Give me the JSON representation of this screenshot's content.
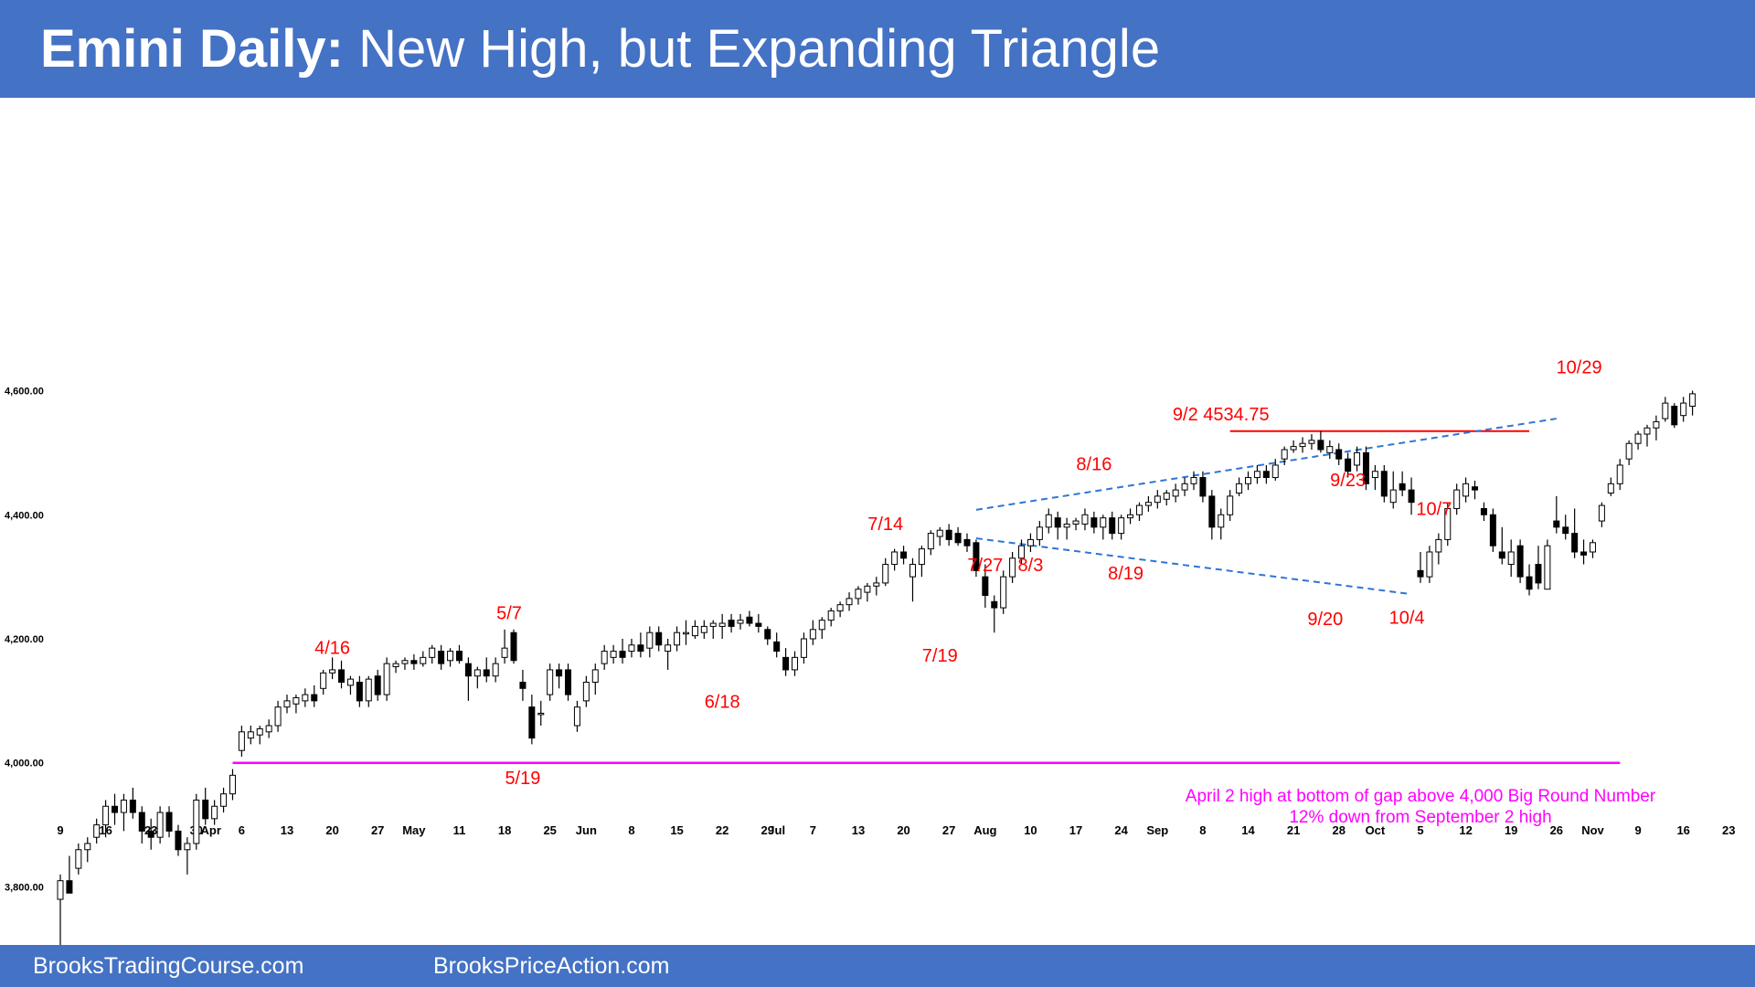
{
  "title": {
    "bold": "Emini Daily:",
    "rest": "New High, but Expanding Triangle"
  },
  "footer": {
    "left": "BrooksTradingCourse.com",
    "right": "BrooksPriceAction.com"
  },
  "colors": {
    "header": "#4472C4",
    "annotation": "#FF0000",
    "support": "#FF00FF",
    "trendline": "#2E75D6",
    "bull_body": "#ffffff",
    "bear_body": "#000000"
  },
  "chart_data": {
    "type": "candlestick",
    "title": "",
    "ylim": [
      3700,
      4620
    ],
    "y_ticks": [
      "3,800.00",
      "4,000.00",
      "4,200.00",
      "4,400.00",
      "4,600.00"
    ],
    "y_tick_values": [
      3800,
      4000,
      4200,
      4400,
      4600
    ],
    "x_ticks": [
      "9",
      "16",
      "23",
      "30",
      "Apr",
      "6",
      "13",
      "20",
      "27",
      "May",
      "11",
      "18",
      "25",
      "Jun",
      "8",
      "15",
      "22",
      "29",
      "Jul",
      "7",
      "13",
      "20",
      "27",
      "Aug",
      "10",
      "17",
      "24",
      "Sep",
      "8",
      "14",
      "21",
      "28",
      "Oct",
      "5",
      "12",
      "19",
      "26",
      "Nov",
      "9",
      "16",
      "23"
    ],
    "x_tick_positions": [
      0,
      5,
      10,
      15,
      16,
      20,
      25,
      30,
      35,
      39,
      44,
      49,
      54,
      58,
      63,
      68,
      73,
      78,
      79,
      83,
      88,
      93,
      98,
      102,
      107,
      112,
      117,
      121,
      126,
      131,
      136,
      141,
      145,
      150,
      155,
      160,
      165,
      169,
      174,
      179,
      184
    ],
    "ohlc": [
      [
        3780,
        3820,
        3700,
        3810
      ],
      [
        3810,
        3850,
        3790,
        3790
      ],
      [
        3830,
        3870,
        3820,
        3860
      ],
      [
        3860,
        3880,
        3840,
        3870
      ],
      [
        3880,
        3910,
        3870,
        3900
      ],
      [
        3900,
        3940,
        3880,
        3930
      ],
      [
        3930,
        3950,
        3900,
        3920
      ],
      [
        3920,
        3950,
        3890,
        3940
      ],
      [
        3940,
        3960,
        3910,
        3920
      ],
      [
        3920,
        3930,
        3870,
        3890
      ],
      [
        3890,
        3910,
        3860,
        3880
      ],
      [
        3880,
        3930,
        3870,
        3920
      ],
      [
        3920,
        3930,
        3880,
        3890
      ],
      [
        3890,
        3900,
        3850,
        3860
      ],
      [
        3860,
        3880,
        3820,
        3870
      ],
      [
        3870,
        3950,
        3860,
        3940
      ],
      [
        3940,
        3960,
        3900,
        3910
      ],
      [
        3910,
        3940,
        3900,
        3930
      ],
      [
        3930,
        3960,
        3920,
        3950
      ],
      [
        3950,
        3990,
        3940,
        3980
      ],
      [
        4020,
        4060,
        4010,
        4050
      ],
      [
        4040,
        4060,
        4030,
        4050
      ],
      [
        4045,
        4060,
        4030,
        4055
      ],
      [
        4050,
        4070,
        4040,
        4060
      ],
      [
        4060,
        4100,
        4050,
        4090
      ],
      [
        4090,
        4110,
        4080,
        4100
      ],
      [
        4095,
        4110,
        4080,
        4105
      ],
      [
        4100,
        4120,
        4090,
        4110
      ],
      [
        4110,
        4125,
        4090,
        4100
      ],
      [
        4120,
        4150,
        4110,
        4145
      ],
      [
        4145,
        4170,
        4135,
        4150
      ],
      [
        4150,
        4165,
        4120,
        4130
      ],
      [
        4125,
        4140,
        4110,
        4135
      ],
      [
        4130,
        4140,
        4090,
        4100
      ],
      [
        4100,
        4140,
        4090,
        4135
      ],
      [
        4140,
        4150,
        4100,
        4110
      ],
      [
        4110,
        4170,
        4100,
        4160
      ],
      [
        4155,
        4165,
        4145,
        4160
      ],
      [
        4160,
        4170,
        4150,
        4165
      ],
      [
        4165,
        4175,
        4150,
        4160
      ],
      [
        4160,
        4180,
        4155,
        4170
      ],
      [
        4170,
        4190,
        4160,
        4185
      ],
      [
        4180,
        4190,
        4150,
        4160
      ],
      [
        4165,
        4185,
        4155,
        4180
      ],
      [
        4180,
        4190,
        4160,
        4165
      ],
      [
        4160,
        4170,
        4100,
        4140
      ],
      [
        4140,
        4155,
        4120,
        4150
      ],
      [
        4150,
        4170,
        4130,
        4140
      ],
      [
        4140,
        4170,
        4130,
        4160
      ],
      [
        4170,
        4215,
        4160,
        4185
      ],
      [
        4210,
        4215,
        4160,
        4165
      ],
      [
        4130,
        4150,
        4100,
        4120
      ],
      [
        4090,
        4110,
        4030,
        4040
      ],
      [
        4080,
        4100,
        4060,
        4080
      ],
      [
        4110,
        4160,
        4100,
        4150
      ],
      [
        4150,
        4160,
        4120,
        4140
      ],
      [
        4150,
        4160,
        4100,
        4110
      ],
      [
        4060,
        4100,
        4050,
        4090
      ],
      [
        4100,
        4140,
        4090,
        4130
      ],
      [
        4130,
        4160,
        4110,
        4150
      ],
      [
        4160,
        4190,
        4150,
        4180
      ],
      [
        4170,
        4190,
        4160,
        4180
      ],
      [
        4180,
        4200,
        4160,
        4170
      ],
      [
        4180,
        4200,
        4170,
        4190
      ],
      [
        4190,
        4210,
        4170,
        4180
      ],
      [
        4185,
        4220,
        4170,
        4210
      ],
      [
        4210,
        4220,
        4180,
        4190
      ],
      [
        4180,
        4200,
        4150,
        4190
      ],
      [
        4190,
        4220,
        4180,
        4210
      ],
      [
        4210,
        4230,
        4190,
        4210
      ],
      [
        4205,
        4230,
        4200,
        4220
      ],
      [
        4210,
        4230,
        4200,
        4220
      ],
      [
        4220,
        4230,
        4200,
        4225
      ],
      [
        4220,
        4240,
        4200,
        4225
      ],
      [
        4230,
        4240,
        4210,
        4220
      ],
      [
        4225,
        4240,
        4215,
        4230
      ],
      [
        4235,
        4245,
        4220,
        4225
      ],
      [
        4225,
        4240,
        4210,
        4220
      ],
      [
        4215,
        4220,
        4190,
        4200
      ],
      [
        4195,
        4210,
        4170,
        4180
      ],
      [
        4170,
        4185,
        4140,
        4150
      ],
      [
        4150,
        4180,
        4140,
        4170
      ],
      [
        4170,
        4210,
        4160,
        4200
      ],
      [
        4200,
        4230,
        4190,
        4215
      ],
      [
        4215,
        4235,
        4200,
        4230
      ],
      [
        4230,
        4250,
        4220,
        4245
      ],
      [
        4245,
        4260,
        4235,
        4255
      ],
      [
        4255,
        4275,
        4245,
        4265
      ],
      [
        4265,
        4285,
        4255,
        4280
      ],
      [
        4275,
        4290,
        4260,
        4285
      ],
      [
        4285,
        4300,
        4270,
        4290
      ],
      [
        4290,
        4330,
        4285,
        4320
      ],
      [
        4320,
        4345,
        4310,
        4340
      ],
      [
        4340,
        4350,
        4320,
        4330
      ],
      [
        4300,
        4330,
        4260,
        4320
      ],
      [
        4320,
        4350,
        4300,
        4345
      ],
      [
        4345,
        4375,
        4335,
        4370
      ],
      [
        4365,
        4380,
        4350,
        4375
      ],
      [
        4375,
        4385,
        4350,
        4360
      ],
      [
        4370,
        4380,
        4350,
        4355
      ],
      [
        4360,
        4370,
        4340,
        4350
      ],
      [
        4355,
        4360,
        4300,
        4310
      ],
      [
        4300,
        4320,
        4250,
        4270
      ],
      [
        4260,
        4270,
        4210,
        4250
      ],
      [
        4250,
        4310,
        4240,
        4300
      ],
      [
        4300,
        4340,
        4290,
        4330
      ],
      [
        4330,
        4360,
        4320,
        4350
      ],
      [
        4350,
        4370,
        4340,
        4360
      ],
      [
        4360,
        4390,
        4350,
        4380
      ],
      [
        4380,
        4410,
        4370,
        4400
      ],
      [
        4395,
        4405,
        4360,
        4380
      ],
      [
        4380,
        4395,
        4360,
        4385
      ],
      [
        4385,
        4395,
        4375,
        4390
      ],
      [
        4385,
        4410,
        4375,
        4400
      ],
      [
        4395,
        4405,
        4370,
        4380
      ],
      [
        4380,
        4400,
        4360,
        4395
      ],
      [
        4395,
        4405,
        4360,
        4370
      ],
      [
        4370,
        4400,
        4360,
        4395
      ],
      [
        4395,
        4410,
        4385,
        4400
      ],
      [
        4400,
        4420,
        4390,
        4415
      ],
      [
        4415,
        4430,
        4405,
        4420
      ],
      [
        4420,
        4440,
        4410,
        4430
      ],
      [
        4425,
        4440,
        4415,
        4435
      ],
      [
        4430,
        4450,
        4420,
        4440
      ],
      [
        4440,
        4460,
        4430,
        4450
      ],
      [
        4450,
        4470,
        4440,
        4460
      ],
      [
        4460,
        4470,
        4420,
        4430
      ],
      [
        4430,
        4440,
        4360,
        4380
      ],
      [
        4380,
        4410,
        4360,
        4400
      ],
      [
        4400,
        4440,
        4390,
        4430
      ],
      [
        4435,
        4460,
        4430,
        4450
      ],
      [
        4450,
        4470,
        4440,
        4460
      ],
      [
        4460,
        4480,
        4450,
        4470
      ],
      [
        4470,
        4480,
        4450,
        4460
      ],
      [
        4460,
        4490,
        4455,
        4480
      ],
      [
        4490,
        4510,
        4480,
        4505
      ],
      [
        4505,
        4520,
        4500,
        4510
      ],
      [
        4510,
        4525,
        4500,
        4515
      ],
      [
        4515,
        4530,
        4505,
        4520
      ],
      [
        4520,
        4535,
        4500,
        4505
      ],
      [
        4500,
        4520,
        4490,
        4510
      ],
      [
        4505,
        4515,
        4480,
        4490
      ],
      [
        4490,
        4500,
        4460,
        4470
      ],
      [
        4480,
        4510,
        4470,
        4500
      ],
      [
        4500,
        4510,
        4440,
        4450
      ],
      [
        4460,
        4480,
        4440,
        4470
      ],
      [
        4470,
        4480,
        4420,
        4430
      ],
      [
        4420,
        4470,
        4410,
        4440
      ],
      [
        4450,
        4470,
        4430,
        4440
      ],
      [
        4440,
        4460,
        4400,
        4420
      ],
      [
        4310,
        4340,
        4290,
        4300
      ],
      [
        4300,
        4350,
        4290,
        4340
      ],
      [
        4340,
        4370,
        4320,
        4360
      ],
      [
        4360,
        4420,
        4350,
        4410
      ],
      [
        4410,
        4450,
        4400,
        4440
      ],
      [
        4430,
        4460,
        4420,
        4450
      ],
      [
        4445,
        4455,
        4425,
        4440
      ],
      [
        4410,
        4420,
        4390,
        4400
      ],
      [
        4400,
        4410,
        4340,
        4350
      ],
      [
        4340,
        4380,
        4320,
        4330
      ],
      [
        4320,
        4360,
        4300,
        4340
      ],
      [
        4350,
        4360,
        4290,
        4300
      ],
      [
        4300,
        4320,
        4270,
        4280
      ],
      [
        4320,
        4350,
        4280,
        4290
      ],
      [
        4280,
        4360,
        4280,
        4350
      ],
      [
        4390,
        4430,
        4370,
        4380
      ],
      [
        4380,
        4400,
        4360,
        4370
      ],
      [
        4370,
        4410,
        4330,
        4340
      ],
      [
        4340,
        4360,
        4320,
        4335
      ],
      [
        4340,
        4360,
        4330,
        4355
      ],
      [
        4390,
        4420,
        4380,
        4415
      ],
      [
        4435,
        4460,
        4430,
        4450
      ],
      [
        4450,
        4490,
        4440,
        4480
      ],
      [
        4490,
        4520,
        4480,
        4515
      ],
      [
        4515,
        4535,
        4505,
        4530
      ],
      [
        4530,
        4545,
        4510,
        4540
      ],
      [
        4540,
        4560,
        4520,
        4550
      ],
      [
        4555,
        4590,
        4550,
        4580
      ],
      [
        4575,
        4580,
        4540,
        4545
      ],
      [
        4560,
        4590,
        4550,
        4580
      ],
      [
        4575,
        4600,
        4560,
        4595
      ]
    ],
    "annotations": [
      {
        "text": "4/16",
        "x": 30,
        "y": 4176
      },
      {
        "text": "5/7",
        "x": 49.5,
        "y": 4232
      },
      {
        "text": "5/19",
        "x": 51,
        "y": 3966
      },
      {
        "text": "6/18",
        "x": 73,
        "y": 4089
      },
      {
        "text": "7/14",
        "x": 91,
        "y": 4375
      },
      {
        "text": "7/19",
        "x": 97,
        "y": 4163
      },
      {
        "text": "7/27",
        "x": 102,
        "y": 4309
      },
      {
        "text": "8/3",
        "x": 107,
        "y": 4309
      },
      {
        "text": "8/16",
        "x": 114,
        "y": 4472
      },
      {
        "text": "8/19",
        "x": 117.5,
        "y": 4296
      },
      {
        "text": "9/2 4534.75",
        "x": 128,
        "y": 4552
      },
      {
        "text": "9/23",
        "x": 142,
        "y": 4446
      },
      {
        "text": "9/20",
        "x": 139.5,
        "y": 4222
      },
      {
        "text": "10/4",
        "x": 148.5,
        "y": 4224
      },
      {
        "text": "10/7",
        "x": 151.5,
        "y": 4400
      },
      {
        "text": "10/29",
        "x": 167.5,
        "y": 4628
      },
      {
        "text": "April 2 high at bottom of gap above 4,000 Big Round Number",
        "x": 150,
        "y": 3938
      },
      {
        "text": "12% down from September 2 high",
        "x": 150,
        "y": 3904
      }
    ],
    "lines": [
      {
        "name": "support-line",
        "kind": "horizontal",
        "y": 4000,
        "x": [
          19,
          172
        ]
      },
      {
        "name": "sep2-high-line",
        "kind": "horizontal",
        "y": 4534.75,
        "x": [
          129,
          162
        ]
      },
      {
        "name": "upper-trendline",
        "kind": "trend",
        "points": [
          [
            101,
            4408
          ],
          [
            165,
            4555
          ]
        ]
      },
      {
        "name": "lower-trendline",
        "kind": "trend",
        "points": [
          [
            101,
            4362
          ],
          [
            149,
            4272
          ]
        ]
      }
    ]
  }
}
